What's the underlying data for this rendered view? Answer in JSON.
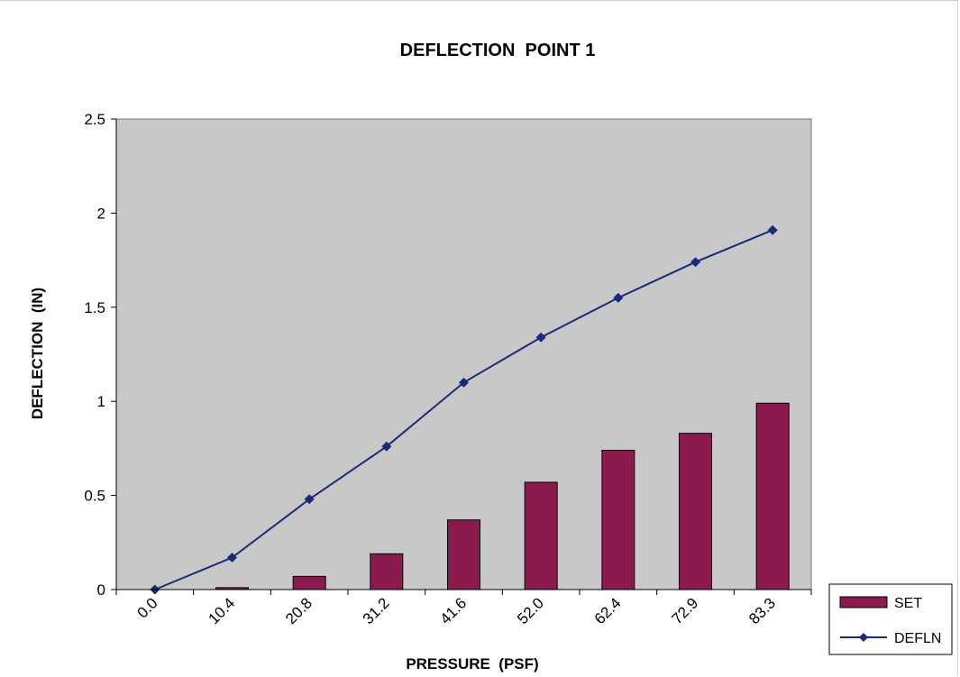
{
  "chart_data": {
    "type": "bar",
    "title": "DEFLECTION  POINT 1",
    "xlabel": "PRESSURE  (PSF)",
    "ylabel": "DEFLECTION  (IN)",
    "categories": [
      "0.0",
      "10.4",
      "20.8",
      "31.2",
      "41.6",
      "52.0",
      "62.4",
      "72.9",
      "83.3"
    ],
    "ylim": [
      0,
      2.5
    ],
    "yticks": [
      "0",
      "0.5",
      "1",
      "1.5",
      "2",
      "2.5"
    ],
    "grid": false,
    "legend_position": "bottom-right",
    "series": [
      {
        "name": "SET",
        "type": "bar",
        "color": "#8b1a4f",
        "values": [
          0.0,
          0.01,
          0.07,
          0.19,
          0.37,
          0.57,
          0.74,
          0.83,
          0.99
        ]
      },
      {
        "name": "DEFLN",
        "type": "line",
        "color": "#1a2a7a",
        "values": [
          0.0,
          0.17,
          0.48,
          0.76,
          1.1,
          1.34,
          1.55,
          1.74,
          1.91
        ]
      }
    ],
    "plot_background": "#c8c8c8"
  }
}
